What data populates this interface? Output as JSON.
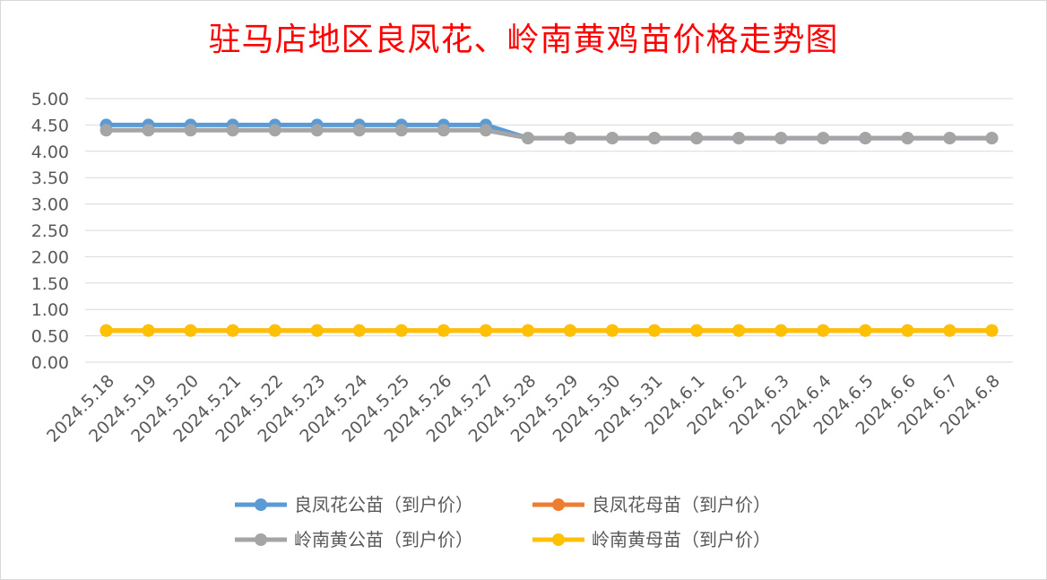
{
  "chart_data": {
    "type": "line",
    "title": "驻马店地区良凤花、岭南黄鸡苗价格走势图",
    "xlabel": "",
    "ylabel": "",
    "ylim": [
      0,
      5
    ],
    "y_ticks": [
      "0.00",
      "0.50",
      "1.00",
      "1.50",
      "2.00",
      "2.50",
      "3.00",
      "3.50",
      "4.00",
      "4.50",
      "5.00"
    ],
    "grid": true,
    "legend_position": "bottom",
    "categories": [
      "2024.5.18",
      "2024.5.19",
      "2024.5.20",
      "2024.5.21",
      "2024.5.22",
      "2024.5.23",
      "2024.5.24",
      "2024.5.25",
      "2024.5.26",
      "2024.5.27",
      "2024.5.28",
      "2024.5.29",
      "2024.5.30",
      "2024.5.31",
      "2024.6.1",
      "2024.6.2",
      "2024.6.3",
      "2024.6.4",
      "2024.6.5",
      "2024.6.6",
      "2024.6.7",
      "2024.6.8"
    ],
    "series": [
      {
        "name": "良凤花公苗（到户价）",
        "color": "#5b9bd5",
        "values": [
          4.5,
          4.5,
          4.5,
          4.5,
          4.5,
          4.5,
          4.5,
          4.5,
          4.5,
          4.5,
          4.25,
          4.25,
          4.25,
          4.25,
          4.25,
          4.25,
          4.25,
          4.25,
          4.25,
          4.25,
          4.25,
          4.25
        ]
      },
      {
        "name": "良凤花母苗（到户价）",
        "color": "#ed7d31",
        "values": [
          0.6,
          0.6,
          0.6,
          0.6,
          0.6,
          0.6,
          0.6,
          0.6,
          0.6,
          0.6,
          0.6,
          0.6,
          0.6,
          0.6,
          0.6,
          0.6,
          0.6,
          0.6,
          0.6,
          0.6,
          0.6,
          0.6
        ]
      },
      {
        "name": "岭南黄公苗（到户价）",
        "color": "#a5a5a5",
        "values": [
          4.4,
          4.4,
          4.4,
          4.4,
          4.4,
          4.4,
          4.4,
          4.4,
          4.4,
          4.4,
          4.25,
          4.25,
          4.25,
          4.25,
          4.25,
          4.25,
          4.25,
          4.25,
          4.25,
          4.25,
          4.25,
          4.25
        ]
      },
      {
        "name": "岭南黄母苗（到户价）",
        "color": "#ffc000",
        "values": [
          0.6,
          0.6,
          0.6,
          0.6,
          0.6,
          0.6,
          0.6,
          0.6,
          0.6,
          0.6,
          0.6,
          0.6,
          0.6,
          0.6,
          0.6,
          0.6,
          0.6,
          0.6,
          0.6,
          0.6,
          0.6,
          0.6
        ]
      }
    ],
    "gridline_color": "#d9d9d9"
  }
}
